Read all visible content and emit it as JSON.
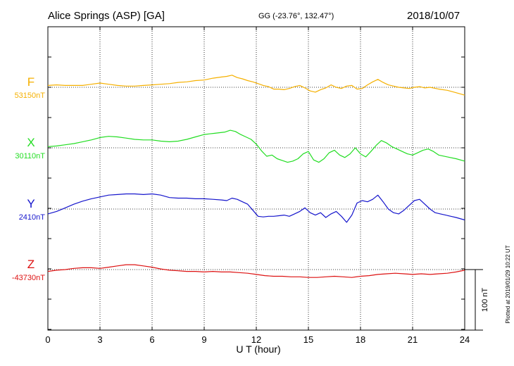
{
  "header": {
    "station": "Alice Springs (ASP)  [GA]",
    "coords": "GG (-23.76°, 132.47°)",
    "date": "2018/10/07"
  },
  "footer": {
    "plotted": "Plotted at 2019/01/29 10:22 UT"
  },
  "chart_data": {
    "type": "line",
    "title": "Alice Springs (ASP)  [GA]",
    "xlabel": "U T (hour)",
    "ylabel": "",
    "xlim": [
      0,
      24
    ],
    "x_ticks": [
      0,
      3,
      6,
      9,
      12,
      15,
      18,
      21,
      24
    ],
    "x_tick_labels": [
      "0",
      "3",
      "6",
      "9",
      "12",
      "15",
      "18",
      "21",
      "24"
    ],
    "grid": true,
    "scale_bar": {
      "value": 100,
      "unit": "nT",
      "label": "100 nT"
    },
    "series": [
      {
        "name": "F",
        "base_label": "53150nT",
        "baseline_nT": 53150,
        "color": "#f5b000",
        "x": [
          0,
          0.5,
          1,
          1.5,
          2,
          2.5,
          3,
          3.5,
          4,
          4.5,
          5,
          5.5,
          6,
          6.5,
          7,
          7.5,
          8,
          8.5,
          9,
          9.5,
          10,
          10.3,
          10.6,
          10.9,
          11.2,
          11.5,
          11.8,
          12.1,
          12.4,
          12.7,
          13,
          13.3,
          13.6,
          13.9,
          14.2,
          14.5,
          14.8,
          15.1,
          15.4,
          15.7,
          16,
          16.3,
          16.6,
          16.9,
          17.2,
          17.5,
          17.8,
          18.1,
          18.4,
          18.7,
          19,
          19.3,
          19.6,
          19.9,
          20.2,
          20.5,
          20.8,
          21.1,
          21.4,
          21.7,
          22,
          22.5,
          23,
          23.5,
          24
        ],
        "values": [
          3,
          4,
          3,
          3,
          3,
          5,
          7,
          5,
          3,
          2,
          2,
          3,
          4,
          5,
          6,
          8,
          9,
          11,
          12,
          15,
          17,
          18,
          20,
          16,
          14,
          11,
          9,
          6,
          3,
          1,
          -3,
          -3,
          -4,
          -2,
          1,
          3,
          -1,
          -6,
          -8,
          -4,
          -1,
          4,
          0,
          -2,
          2,
          3,
          -3,
          -2,
          4,
          9,
          13,
          8,
          4,
          2,
          0,
          -1,
          -2,
          0,
          1,
          -1,
          0,
          -3,
          -5,
          -9,
          -13
        ]
      },
      {
        "name": "X",
        "base_label": "30110nT",
        "baseline_nT": 30110,
        "color": "#22dd22",
        "x": [
          0,
          0.5,
          1,
          1.5,
          2,
          2.5,
          3,
          3.5,
          4,
          4.5,
          5,
          5.5,
          6,
          6.5,
          7,
          7.5,
          8,
          8.5,
          9,
          9.3,
          9.6,
          9.9,
          10.2,
          10.5,
          10.8,
          11.1,
          11.4,
          11.7,
          12,
          12.3,
          12.6,
          12.9,
          13.2,
          13.5,
          13.8,
          14.1,
          14.4,
          14.7,
          15,
          15.3,
          15.6,
          15.9,
          16.2,
          16.5,
          16.8,
          17.1,
          17.4,
          17.7,
          18,
          18.3,
          18.6,
          18.9,
          19.2,
          19.5,
          19.8,
          20.1,
          20.4,
          20.7,
          21,
          21.3,
          21.6,
          21.9,
          22.2,
          22.5,
          23,
          23.5,
          24
        ],
        "values": [
          2,
          3,
          5,
          7,
          10,
          13,
          17,
          19,
          18,
          16,
          14,
          13,
          13,
          11,
          10,
          11,
          14,
          18,
          22,
          23,
          24,
          25,
          26,
          29,
          27,
          22,
          18,
          14,
          6,
          -5,
          -14,
          -12,
          -18,
          -21,
          -24,
          -22,
          -18,
          -10,
          -6,
          -20,
          -24,
          -18,
          -8,
          -4,
          -12,
          -16,
          -10,
          0,
          -10,
          -15,
          -6,
          4,
          12,
          8,
          2,
          -2,
          -6,
          -10,
          -12,
          -8,
          -4,
          -2,
          -6,
          -12,
          -15,
          -18,
          -22
        ]
      },
      {
        "name": "Y",
        "base_label": "2410nT",
        "baseline_nT": 2410,
        "color": "#1515cc",
        "x": [
          0,
          0.5,
          1,
          1.5,
          2,
          2.5,
          3,
          3.5,
          4,
          4.5,
          5,
          5.5,
          6,
          6.5,
          7,
          7.5,
          8,
          8.5,
          9,
          9.5,
          10,
          10.3,
          10.6,
          10.9,
          11.2,
          11.5,
          11.8,
          12.1,
          12.4,
          12.7,
          13,
          13.3,
          13.6,
          13.9,
          14.2,
          14.5,
          14.8,
          15.1,
          15.4,
          15.7,
          16,
          16.3,
          16.6,
          16.9,
          17.2,
          17.5,
          17.8,
          18.1,
          18.4,
          18.7,
          19,
          19.3,
          19.6,
          19.9,
          20.2,
          20.5,
          20.8,
          21.1,
          21.4,
          21.7,
          22,
          22.3,
          22.6,
          22.9,
          23.2,
          23.5,
          24
        ],
        "values": [
          -8,
          -4,
          2,
          8,
          13,
          17,
          20,
          23,
          24,
          25,
          25,
          24,
          25,
          23,
          19,
          18,
          18,
          17,
          17,
          16,
          15,
          14,
          18,
          16,
          12,
          8,
          -2,
          -12,
          -13,
          -12,
          -12,
          -11,
          -10,
          -12,
          -8,
          -4,
          2,
          -6,
          -10,
          -6,
          -14,
          -8,
          -4,
          -12,
          -22,
          -10,
          10,
          14,
          12,
          16,
          23,
          12,
          0,
          -6,
          -8,
          -2,
          6,
          14,
          16,
          8,
          0,
          -6,
          -8,
          -10,
          -12,
          -14,
          -18
        ]
      },
      {
        "name": "Z",
        "base_label": "-43730nT",
        "baseline_nT": -43730,
        "color": "#dd1111",
        "x": [
          0,
          0.5,
          1,
          1.5,
          2,
          2.5,
          3,
          3.5,
          4,
          4.5,
          5,
          5.5,
          6,
          6.5,
          7,
          7.5,
          8,
          8.5,
          9,
          9.5,
          10,
          10.5,
          11,
          11.5,
          12,
          12.5,
          13,
          13.5,
          14,
          14.5,
          15,
          15.5,
          16,
          16.5,
          17,
          17.5,
          18,
          18.5,
          19,
          19.5,
          20,
          20.5,
          21,
          21.5,
          22,
          22.5,
          23,
          23.5,
          24
        ],
        "values": [
          -3,
          -1,
          0,
          2,
          3,
          3,
          2,
          4,
          6,
          8,
          8,
          6,
          4,
          1,
          -1,
          -2,
          -3,
          -3,
          -4,
          -3,
          -4,
          -4,
          -5,
          -6,
          -8,
          -10,
          -11,
          -11,
          -12,
          -12,
          -13,
          -13,
          -12,
          -11,
          -12,
          -13,
          -11,
          -10,
          -8,
          -7,
          -6,
          -7,
          -8,
          -7,
          -8,
          -7,
          -6,
          -4,
          -1
        ]
      }
    ]
  }
}
